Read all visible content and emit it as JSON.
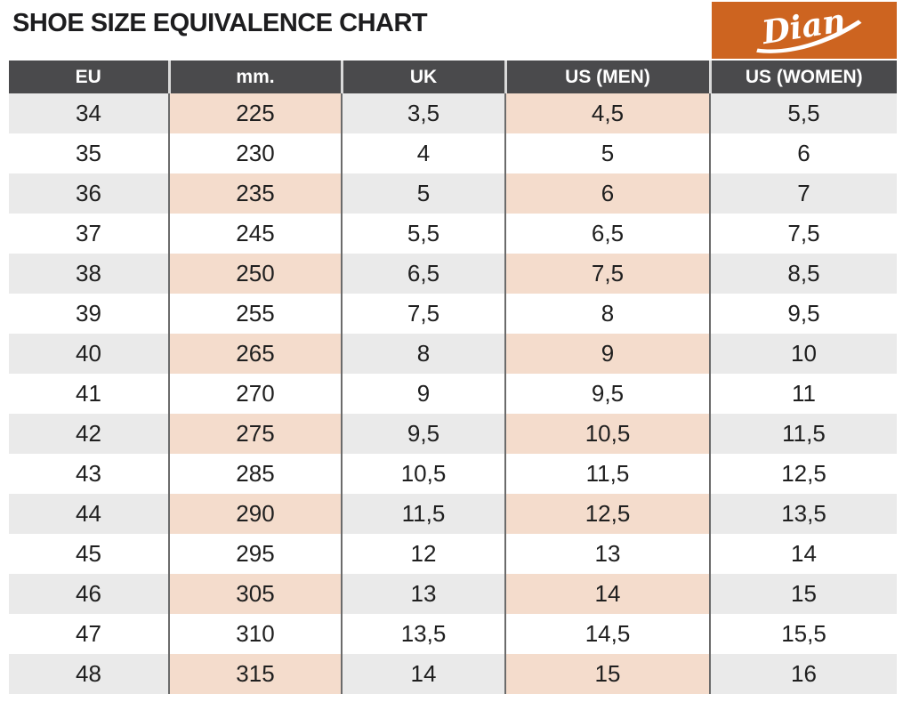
{
  "page": {
    "title": "SHOE SIZE EQUIVALENCE CHART"
  },
  "logo": {
    "brand": "Dian",
    "background_color": "#cd6420",
    "text_color": "#ffffff"
  },
  "colors": {
    "header_bg": "#4a4a4c",
    "header_text": "#ffffff",
    "shaded_row": "#eaeaea",
    "tint_cell": "#f4dccc",
    "separator_line": "#6b6b6b",
    "body_text": "#1f1f1f"
  },
  "table": {
    "columns": [
      {
        "key": "eu",
        "label": "EU"
      },
      {
        "key": "mm",
        "label": "mm."
      },
      {
        "key": "uk",
        "label": "UK"
      },
      {
        "key": "us_men",
        "label": "US (MEN)"
      },
      {
        "key": "us_women",
        "label": "US (WOMEN)"
      }
    ],
    "rows": [
      {
        "eu": "34",
        "mm": "225",
        "uk": "3,5",
        "us_men": "4,5",
        "us_women": "5,5"
      },
      {
        "eu": "35",
        "mm": "230",
        "uk": "4",
        "us_men": "5",
        "us_women": "6"
      },
      {
        "eu": "36",
        "mm": "235",
        "uk": "5",
        "us_men": "6",
        "us_women": "7"
      },
      {
        "eu": "37",
        "mm": "245",
        "uk": "5,5",
        "us_men": "6,5",
        "us_women": "7,5"
      },
      {
        "eu": "38",
        "mm": "250",
        "uk": "6,5",
        "us_men": "7,5",
        "us_women": "8,5"
      },
      {
        "eu": "39",
        "mm": "255",
        "uk": "7,5",
        "us_men": "8",
        "us_women": "9,5"
      },
      {
        "eu": "40",
        "mm": "265",
        "uk": "8",
        "us_men": "9",
        "us_women": "10"
      },
      {
        "eu": "41",
        "mm": "270",
        "uk": "9",
        "us_men": "9,5",
        "us_women": "11"
      },
      {
        "eu": "42",
        "mm": "275",
        "uk": "9,5",
        "us_men": "10,5",
        "us_women": "11,5"
      },
      {
        "eu": "43",
        "mm": "285",
        "uk": "10,5",
        "us_men": "11,5",
        "us_women": "12,5"
      },
      {
        "eu": "44",
        "mm": "290",
        "uk": "11,5",
        "us_men": "12,5",
        "us_women": "13,5"
      },
      {
        "eu": "45",
        "mm": "295",
        "uk": "12",
        "us_men": "13",
        "us_women": "14"
      },
      {
        "eu": "46",
        "mm": "305",
        "uk": "13",
        "us_men": "14",
        "us_women": "15"
      },
      {
        "eu": "47",
        "mm": "310",
        "uk": "13,5",
        "us_men": "14,5",
        "us_women": "15,5"
      },
      {
        "eu": "48",
        "mm": "315",
        "uk": "14",
        "us_men": "15",
        "us_women": "16"
      }
    ]
  },
  "chart_data": {
    "type": "table",
    "title": "SHOE SIZE EQUIVALENCE CHART",
    "columns": [
      "EU",
      "mm.",
      "UK",
      "US (MEN)",
      "US (WOMEN)"
    ],
    "rows": [
      [
        "34",
        "225",
        "3,5",
        "4,5",
        "5,5"
      ],
      [
        "35",
        "230",
        "4",
        "5",
        "6"
      ],
      [
        "36",
        "235",
        "5",
        "6",
        "7"
      ],
      [
        "37",
        "245",
        "5,5",
        "6,5",
        "7,5"
      ],
      [
        "38",
        "250",
        "6,5",
        "7,5",
        "8,5"
      ],
      [
        "39",
        "255",
        "7,5",
        "8",
        "9,5"
      ],
      [
        "40",
        "265",
        "8",
        "9",
        "10"
      ],
      [
        "41",
        "270",
        "9",
        "9,5",
        "11"
      ],
      [
        "42",
        "275",
        "9,5",
        "10,5",
        "11,5"
      ],
      [
        "43",
        "285",
        "10,5",
        "11,5",
        "12,5"
      ],
      [
        "44",
        "290",
        "11,5",
        "12,5",
        "13,5"
      ],
      [
        "45",
        "295",
        "12",
        "13",
        "14"
      ],
      [
        "46",
        "305",
        "13",
        "14",
        "15"
      ],
      [
        "47",
        "310",
        "13,5",
        "14,5",
        "15,5"
      ],
      [
        "48",
        "315",
        "14",
        "15",
        "16"
      ]
    ],
    "layout_hints": {
      "shaded_rows": "alternating starting with first data row",
      "tinted_columns": [
        "mm.",
        "US (MEN)"
      ]
    }
  }
}
